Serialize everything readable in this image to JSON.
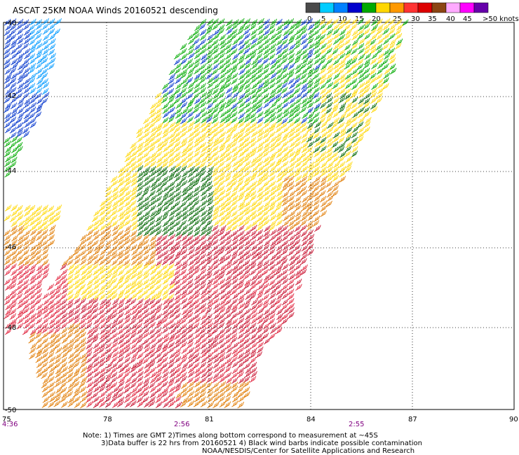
{
  "title": "ASCAT 25KM NOAA Winds 20160521 descending",
  "colorbar": {
    "colors": [
      "#4a4a4a",
      "#00ccff",
      "#0080ff",
      "#0000cc",
      "#00aa00",
      "#ffd700",
      "#ff9900",
      "#ff3333",
      "#dd0000",
      "#8b4513",
      "#ffaaff",
      "#ff00ff",
      "#6600aa"
    ],
    "labels": [
      "0",
      "5",
      "10",
      "15",
      "20",
      "25",
      "30",
      "35",
      "40",
      "45",
      ">50 knots"
    ]
  },
  "axes": {
    "lon_labels": [
      "75",
      "78",
      "81",
      "84",
      "87",
      "90"
    ],
    "lat_labels": [
      "-40",
      "-42",
      "-44",
      "-46",
      "-48",
      "-50"
    ],
    "time_labels": [
      "4:36",
      "2:56",
      "2:55"
    ]
  },
  "notes": {
    "line1": "Note: 1) Times are GMT 2)Times along bottom correspond to measurement at ~45S",
    "line2": "3)Data buffer is 22 hrs from 20160521 4) Black wind barbs indicate possible contamination",
    "line3": "NOAA/NESDIS/Center for Satellite Applications and Research"
  },
  "wind_colors": {
    "blue": "#0033cc",
    "light_blue": "#0099ff",
    "green": "#00aa00",
    "dark_green": "#006600",
    "yellow": "#ffd700",
    "orange": "#e07a00",
    "red": "#e0203a",
    "crimson": "#c8102e"
  }
}
